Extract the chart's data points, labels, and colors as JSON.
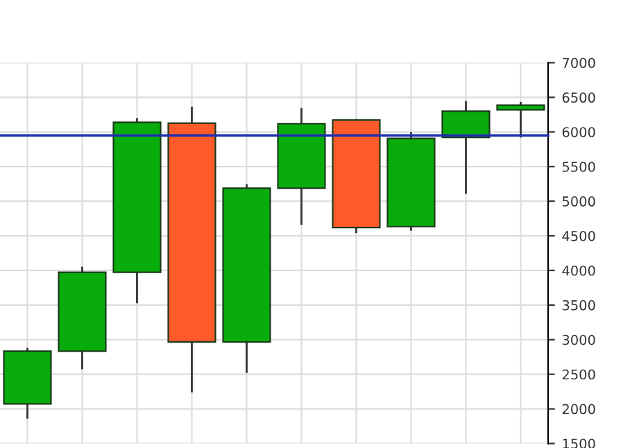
{
  "chart_data": {
    "type": "candlestick",
    "categories": [
      null,
      null,
      null,
      null,
      null,
      null,
      null,
      null,
      null,
      null
    ],
    "ohlc": [
      [
        2073,
        2867,
        1873,
        2833
      ],
      [
        2833,
        4040,
        2587,
        3973
      ],
      [
        3973,
        6187,
        3540,
        6140
      ],
      [
        6127,
        6353,
        2253,
        2967
      ],
      [
        2967,
        5233,
        2533,
        5187
      ],
      [
        5187,
        6333,
        4673,
        6120
      ],
      [
        6173,
        6173,
        4553,
        4620
      ],
      [
        4633,
        5987,
        4587,
        5907
      ],
      [
        5920,
        6433,
        5120,
        6300
      ],
      [
        6320,
        6420,
        5933,
        6387
      ]
    ],
    "ylim": [
      1500,
      7000
    ],
    "yticks": [
      1500,
      2000,
      2500,
      3000,
      3500,
      4000,
      4500,
      5000,
      5500,
      6000,
      6500,
      7000
    ],
    "tick_labels": "y",
    "grid": true,
    "ref_lines": [
      {
        "axis": "y",
        "value": 5950,
        "color": "#1f2fb0"
      }
    ]
  }
}
